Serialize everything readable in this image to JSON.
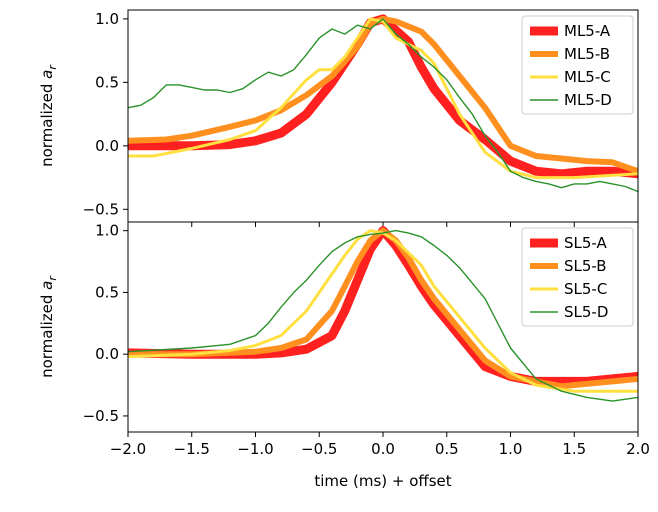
{
  "chart_data": {
    "type": "line",
    "xlabel": "time (ms) + offset",
    "xlim": [
      -2.0,
      2.0
    ],
    "xticks": [
      -2.0,
      -1.5,
      -1.0,
      -0.5,
      0.0,
      0.5,
      1.0,
      1.5,
      2.0
    ],
    "xtick_labels": [
      "−2.0",
      "−1.5",
      "−1.0",
      "−0.5",
      "0.0",
      "0.5",
      "1.0",
      "1.5",
      "2.0"
    ],
    "panels": [
      {
        "ylabel": "normalized a",
        "ylabel_subscript": "r",
        "ylim": [
          -0.6,
          1.07
        ],
        "yticks": [
          -0.5,
          0.0,
          0.5,
          1.0
        ],
        "ytick_labels": [
          "−0.5",
          "0.0",
          "0.5",
          "1.0"
        ],
        "legend_position": "upper-right",
        "series": [
          {
            "name": "ML5-A",
            "color": "#ff2020",
            "width": 9,
            "x": [
              -2.0,
              -1.5,
              -1.2,
              -1.0,
              -0.8,
              -0.6,
              -0.4,
              -0.2,
              -0.1,
              0.0,
              0.2,
              0.3,
              0.4,
              0.6,
              0.8,
              1.0,
              1.2,
              1.4,
              1.6,
              1.8,
              2.0
            ],
            "y": [
              0.0,
              0.0,
              0.01,
              0.04,
              0.1,
              0.25,
              0.5,
              0.8,
              0.97,
              1.0,
              0.82,
              0.62,
              0.45,
              0.2,
              0.05,
              -0.12,
              -0.2,
              -0.22,
              -0.2,
              -0.2,
              -0.22
            ]
          },
          {
            "name": "ML5-B",
            "color": "#ff9020",
            "width": 6,
            "x": [
              -2.0,
              -1.7,
              -1.5,
              -1.2,
              -1.0,
              -0.8,
              -0.6,
              -0.4,
              -0.2,
              -0.1,
              0.0,
              0.1,
              0.3,
              0.4,
              0.6,
              0.8,
              1.0,
              1.2,
              1.4,
              1.6,
              1.8,
              2.0
            ],
            "y": [
              0.04,
              0.05,
              0.08,
              0.15,
              0.2,
              0.28,
              0.4,
              0.55,
              0.78,
              0.96,
              1.0,
              0.98,
              0.9,
              0.8,
              0.55,
              0.3,
              0.0,
              -0.08,
              -0.1,
              -0.12,
              -0.13,
              -0.2
            ]
          },
          {
            "name": "ML5-C",
            "color": "#ffe040",
            "width": 3,
            "x": [
              -2.0,
              -1.8,
              -1.5,
              -1.2,
              -1.0,
              -0.8,
              -0.6,
              -0.5,
              -0.4,
              -0.3,
              -0.2,
              -0.1,
              0.0,
              0.1,
              0.2,
              0.3,
              0.4,
              0.6,
              0.8,
              1.0,
              1.2,
              1.5,
              2.0
            ],
            "y": [
              -0.08,
              -0.08,
              -0.02,
              0.05,
              0.12,
              0.3,
              0.52,
              0.6,
              0.6,
              0.7,
              0.85,
              1.0,
              0.98,
              0.85,
              0.8,
              0.75,
              0.65,
              0.25,
              -0.05,
              -0.2,
              -0.25,
              -0.25,
              -0.22
            ]
          },
          {
            "name": "ML5-D",
            "color": "#2a922a",
            "width": 1.4,
            "x": [
              -2.0,
              -1.9,
              -1.8,
              -1.7,
              -1.6,
              -1.5,
              -1.4,
              -1.3,
              -1.2,
              -1.1,
              -1.0,
              -0.9,
              -0.8,
              -0.7,
              -0.6,
              -0.5,
              -0.4,
              -0.3,
              -0.2,
              -0.1,
              0.0,
              0.1,
              0.2,
              0.3,
              0.4,
              0.5,
              0.6,
              0.7,
              0.8,
              0.9,
              1.0,
              1.1,
              1.2,
              1.3,
              1.4,
              1.5,
              1.6,
              1.7,
              1.8,
              1.9,
              2.0
            ],
            "y": [
              0.3,
              0.32,
              0.38,
              0.48,
              0.48,
              0.46,
              0.44,
              0.44,
              0.42,
              0.45,
              0.52,
              0.58,
              0.55,
              0.6,
              0.72,
              0.85,
              0.92,
              0.88,
              0.95,
              0.92,
              1.0,
              0.88,
              0.8,
              0.7,
              0.62,
              0.52,
              0.38,
              0.25,
              0.08,
              -0.05,
              -0.2,
              -0.25,
              -0.28,
              -0.3,
              -0.33,
              -0.3,
              -0.3,
              -0.28,
              -0.3,
              -0.32,
              -0.36
            ]
          }
        ]
      },
      {
        "ylabel": "normalized a",
        "ylabel_subscript": "r",
        "ylim": [
          -0.63,
          1.07
        ],
        "yticks": [
          -0.5,
          0.0,
          0.5,
          1.0
        ],
        "ytick_labels": [
          "−0.5",
          "0.0",
          "0.5",
          "1.0"
        ],
        "legend_position": "upper-right",
        "series": [
          {
            "name": "SL5-A",
            "color": "#ff2020",
            "width": 9,
            "x": [
              -2.0,
              -1.5,
              -1.0,
              -0.8,
              -0.6,
              -0.4,
              -0.3,
              -0.2,
              -0.1,
              0.0,
              0.1,
              0.2,
              0.3,
              0.4,
              0.6,
              0.8,
              1.0,
              1.2,
              1.4,
              1.6,
              1.8,
              2.0
            ],
            "y": [
              0.01,
              0.0,
              0.0,
              0.01,
              0.04,
              0.15,
              0.35,
              0.6,
              0.85,
              1.0,
              0.88,
              0.72,
              0.55,
              0.4,
              0.15,
              -0.1,
              -0.18,
              -0.22,
              -0.22,
              -0.22,
              -0.2,
              -0.18
            ]
          },
          {
            "name": "SL5-B",
            "color": "#ff9020",
            "width": 6,
            "x": [
              -2.0,
              -1.5,
              -1.0,
              -0.8,
              -0.6,
              -0.4,
              -0.3,
              -0.2,
              -0.1,
              0.0,
              0.1,
              0.2,
              0.3,
              0.4,
              0.6,
              0.8,
              1.0,
              1.2,
              1.4,
              1.6,
              1.8,
              2.0
            ],
            "y": [
              0.0,
              0.0,
              0.02,
              0.05,
              0.12,
              0.35,
              0.55,
              0.75,
              0.92,
              1.0,
              0.92,
              0.78,
              0.6,
              0.45,
              0.2,
              -0.05,
              -0.18,
              -0.22,
              -0.26,
              -0.24,
              -0.22,
              -0.2
            ]
          },
          {
            "name": "SL5-C",
            "color": "#ffe040",
            "width": 3,
            "x": [
              -2.0,
              -1.5,
              -1.2,
              -1.0,
              -0.8,
              -0.6,
              -0.4,
              -0.3,
              -0.2,
              -0.1,
              0.0,
              0.1,
              0.2,
              0.3,
              0.4,
              0.6,
              0.8,
              1.0,
              1.2,
              1.5,
              2.0
            ],
            "y": [
              -0.02,
              0.0,
              0.03,
              0.07,
              0.15,
              0.35,
              0.65,
              0.8,
              0.93,
              1.0,
              0.98,
              0.92,
              0.82,
              0.72,
              0.55,
              0.3,
              0.05,
              -0.15,
              -0.25,
              -0.3,
              -0.3
            ]
          },
          {
            "name": "SL5-D",
            "color": "#2a922a",
            "width": 1.4,
            "x": [
              -2.0,
              -1.5,
              -1.2,
              -1.0,
              -0.9,
              -0.8,
              -0.7,
              -0.6,
              -0.5,
              -0.4,
              -0.3,
              -0.2,
              -0.1,
              0.0,
              0.1,
              0.2,
              0.3,
              0.4,
              0.5,
              0.6,
              0.8,
              1.0,
              1.2,
              1.4,
              1.6,
              1.8,
              2.0
            ],
            "y": [
              0.02,
              0.05,
              0.08,
              0.15,
              0.25,
              0.38,
              0.5,
              0.6,
              0.72,
              0.83,
              0.9,
              0.95,
              0.97,
              0.98,
              1.0,
              0.98,
              0.95,
              0.88,
              0.8,
              0.7,
              0.45,
              0.05,
              -0.2,
              -0.3,
              -0.35,
              -0.38,
              -0.35
            ]
          }
        ]
      }
    ]
  }
}
